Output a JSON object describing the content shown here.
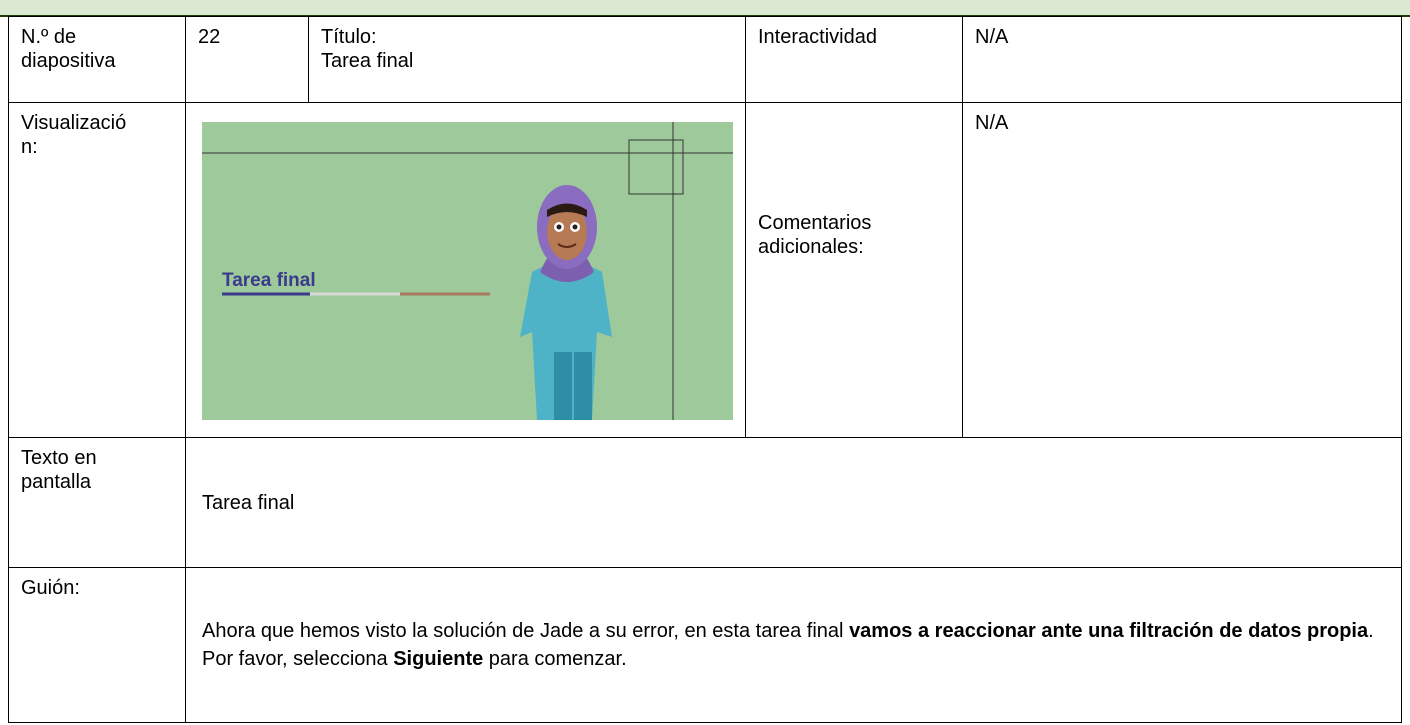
{
  "header_row": {
    "slide_label": "N.º de diapositiva",
    "slide_number": "22",
    "title_label": "Título:",
    "title": "Tarea final",
    "interactivity_label": "Interactividad",
    "interactivity": "N/A"
  },
  "preview_row": {
    "label": "Visualización:",
    "image_text": "Tarea final",
    "comments_label": "Comentarios adicionales:",
    "comments": "N/A"
  },
  "screen_text_row": {
    "label": "Texto en pantalla",
    "text": "Tarea final"
  },
  "script_row": {
    "label": "Guión:",
    "text": [
      {
        "text": "Ahora que hemos visto la solución de Jade a su error, en esta tarea final ",
        "bold": false
      },
      {
        "text": "vamos a reaccionar ante una filtración de datos propia",
        "bold": true
      },
      {
        "text": ". Por favor, selecciona ",
        "bold": false
      },
      {
        "text": "Siguiente",
        "bold": true
      },
      {
        "text": " para comenzar.",
        "bold": false
      }
    ]
  }
}
